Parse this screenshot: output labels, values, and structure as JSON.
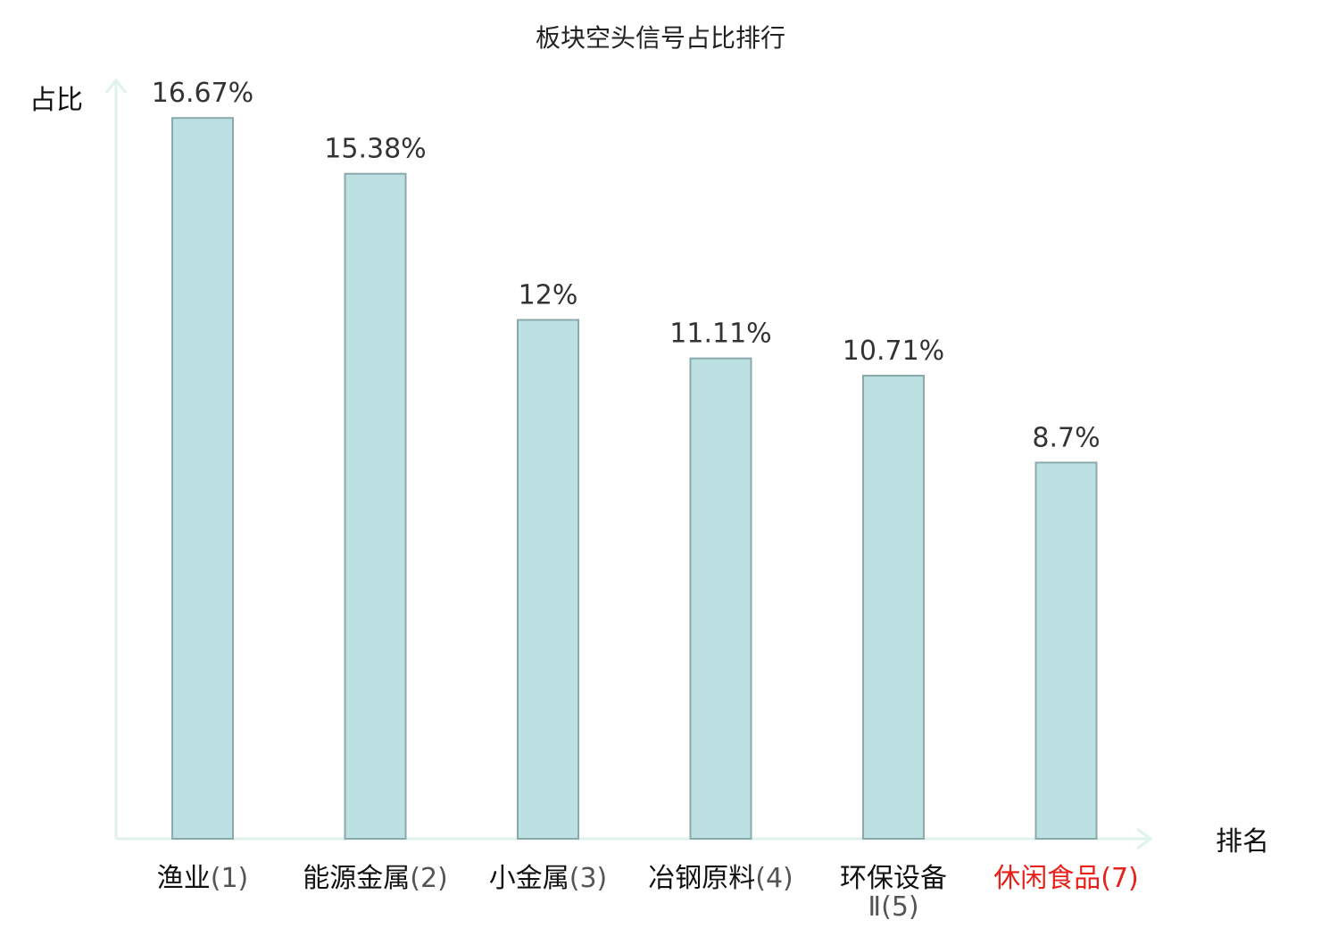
{
  "chart_data": {
    "type": "bar",
    "title": "板块空头信号占比排行",
    "ylabel": "占比",
    "xlabel": "排名",
    "ylim": [
      0,
      17.5
    ],
    "grid": false,
    "categories": [
      {
        "name": "渔业",
        "rank": "(1)",
        "highlight": false
      },
      {
        "name": "能源金属",
        "rank": "(2)",
        "highlight": false
      },
      {
        "name": "小金属",
        "rank": "(3)",
        "highlight": false
      },
      {
        "name": "冶钢原料",
        "rank": "(4)",
        "highlight": false
      },
      {
        "name": "环保设备",
        "rank": "Ⅱ(5)",
        "highlight": false
      },
      {
        "name": "休闲食品",
        "rank": "(7)",
        "highlight": true
      }
    ],
    "values": [
      16.67,
      15.38,
      12,
      11.11,
      10.71,
      8.7
    ],
    "value_labels": [
      "16.67%",
      "15.38%",
      "12%",
      "11.11%",
      "10.71%",
      "8.7%"
    ]
  },
  "colors": {
    "bar_fill": "#bde0e3",
    "bar_stroke": "#8aa9ab",
    "axis": "#dff2ee",
    "highlight": "#e8201a"
  }
}
